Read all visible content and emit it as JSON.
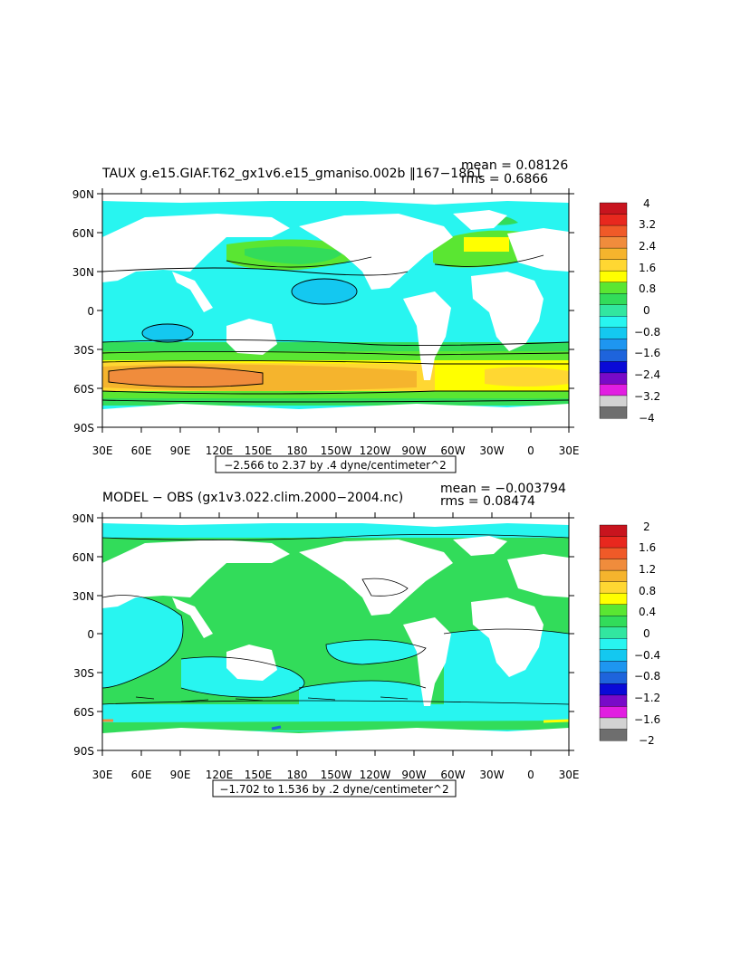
{
  "panels": [
    {
      "id": "top",
      "title": "TAUX g.e15.GIAF.T62_gx1v6.e15_gmaniso.002b ‖167−1861",
      "mean_text": "mean = 0.08126",
      "rms_text": "rms = 0.6866",
      "range_text": "−2.566 to 2.37 by .4 dyne/centimeter^2",
      "lat_labels": [
        "90N",
        "60N",
        "30N",
        "0",
        "30S",
        "60S",
        "90S"
      ],
      "lon_labels": [
        "30E",
        "60E",
        "90E",
        "120E",
        "150E",
        "180",
        "150W",
        "120W",
        "90W",
        "60W",
        "30W",
        "0",
        "30E"
      ],
      "colorbar_labels": [
        "4",
        "3.2",
        "2.4",
        "1.6",
        "0.8",
        "0",
        "−0.8",
        "−1.6",
        "−2.4",
        "−3.2",
        "−4"
      ],
      "colorbar_colors": [
        "#c8141e",
        "#e8281e",
        "#f05a28",
        "#f08c3c",
        "#f5b42d",
        "#ffd732",
        "#ffff00",
        "#5ae632",
        "#32dc5a",
        "#32e6a0",
        "#28f5f0",
        "#14c8f0",
        "#1e96f0",
        "#1e64dc",
        "#0a0ad7",
        "#780ac8",
        "#e11ee1",
        "#d2d2d2",
        "#6e6e6e"
      ]
    },
    {
      "id": "bottom",
      "title": "MODEL − OBS (gx1v3.022.clim.2000−2004.nc)",
      "mean_text": "mean = −0.003794",
      "rms_text": "rms = 0.08474",
      "range_text": "−1.702 to 1.536 by .2 dyne/centimeter^2",
      "lat_labels": [
        "90N",
        "60N",
        "30N",
        "0",
        "30S",
        "60S",
        "90S"
      ],
      "lon_labels": [
        "30E",
        "60E",
        "90E",
        "120E",
        "150E",
        "180",
        "150W",
        "120W",
        "90W",
        "60W",
        "30W",
        "0",
        "30E"
      ],
      "colorbar_labels": [
        "2",
        "1.6",
        "1.2",
        "0.8",
        "0.4",
        "0",
        "−0.4",
        "−0.8",
        "−1.2",
        "−1.6",
        "−2"
      ],
      "colorbar_colors": [
        "#c8141e",
        "#e8281e",
        "#f05a28",
        "#f08c3c",
        "#f5b42d",
        "#ffd732",
        "#ffff00",
        "#5ae632",
        "#32dc5a",
        "#32e6a0",
        "#28f5f0",
        "#14c8f0",
        "#1e96f0",
        "#1e64dc",
        "#0a0ad7",
        "#780ac8",
        "#e11ee1",
        "#d2d2d2",
        "#6e6e6e"
      ]
    }
  ],
  "colors": {
    "ocean_cyan": "#28f5f0",
    "ocean_green": "#32dc5a",
    "light_green": "#5ae632",
    "yellow": "#ffff00",
    "orange_light": "#ffd732",
    "orange": "#f5b42d",
    "orange_dark": "#f08c3c",
    "blue_light": "#14c8f0",
    "land": "#ffffff"
  }
}
